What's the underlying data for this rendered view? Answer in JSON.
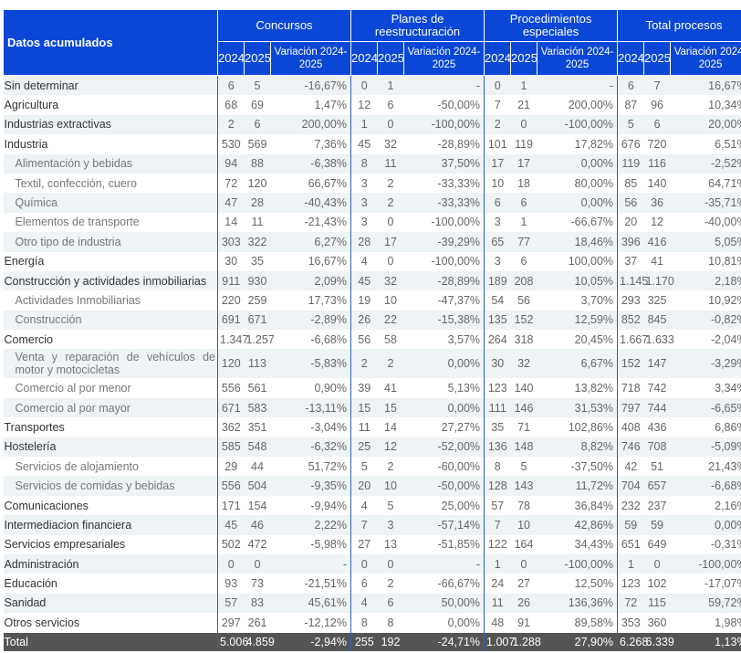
{
  "header": {
    "title": "Datos acumulados",
    "groups": [
      "Concursos",
      "Planes de reestructuración",
      "Procedimientos especiales",
      "Total procesos"
    ],
    "y1": "2024",
    "y2": "2025",
    "var": "Variación 2024-2025"
  },
  "rows": [
    {
      "label": "Sin determinar",
      "sub": false,
      "v": [
        "6",
        "5",
        "-16,67%",
        "0",
        "1",
        "-",
        "0",
        "1",
        "-",
        "6",
        "7",
        "16,67%"
      ]
    },
    {
      "label": "Agricultura",
      "sub": false,
      "v": [
        "68",
        "69",
        "1,47%",
        "12",
        "6",
        "-50,00%",
        "7",
        "21",
        "200,00%",
        "87",
        "96",
        "10,34%"
      ]
    },
    {
      "label": "Industrias extractivas",
      "sub": false,
      "v": [
        "2",
        "6",
        "200,00%",
        "1",
        "0",
        "-100,00%",
        "2",
        "0",
        "-100,00%",
        "5",
        "6",
        "20,00%"
      ]
    },
    {
      "label": "Industria",
      "sub": false,
      "v": [
        "530",
        "569",
        "7,36%",
        "45",
        "32",
        "-28,89%",
        "101",
        "119",
        "17,82%",
        "676",
        "720",
        "6,51%"
      ]
    },
    {
      "label": "Alimentación y bebidas",
      "sub": true,
      "v": [
        "94",
        "88",
        "-6,38%",
        "8",
        "11",
        "37,50%",
        "17",
        "17",
        "0,00%",
        "119",
        "116",
        "-2,52%"
      ]
    },
    {
      "label": "Textil, confección, cuero",
      "sub": true,
      "v": [
        "72",
        "120",
        "66,67%",
        "3",
        "2",
        "-33,33%",
        "10",
        "18",
        "80,00%",
        "85",
        "140",
        "64,71%"
      ]
    },
    {
      "label": "Química",
      "sub": true,
      "v": [
        "47",
        "28",
        "-40,43%",
        "3",
        "2",
        "-33,33%",
        "6",
        "6",
        "0,00%",
        "56",
        "36",
        "-35,71%"
      ]
    },
    {
      "label": "Elementos de transporte",
      "sub": true,
      "v": [
        "14",
        "11",
        "-21,43%",
        "3",
        "0",
        "-100,00%",
        "3",
        "1",
        "-66,67%",
        "20",
        "12",
        "-40,00%"
      ]
    },
    {
      "label": "Otro tipo de industria",
      "sub": true,
      "v": [
        "303",
        "322",
        "6,27%",
        "28",
        "17",
        "-39,29%",
        "65",
        "77",
        "18,46%",
        "396",
        "416",
        "5,05%"
      ]
    },
    {
      "label": "Energía",
      "sub": false,
      "v": [
        "30",
        "35",
        "16,67%",
        "4",
        "0",
        "-100,00%",
        "3",
        "6",
        "100,00%",
        "37",
        "41",
        "10,81%"
      ]
    },
    {
      "label": "Construcción y actividades inmobiliarias",
      "sub": false,
      "v": [
        "911",
        "930",
        "2,09%",
        "45",
        "32",
        "-28,89%",
        "189",
        "208",
        "10,05%",
        "1.145",
        "1.170",
        "2,18%"
      ]
    },
    {
      "label": "Actividades Inmobiliarias",
      "sub": true,
      "v": [
        "220",
        "259",
        "17,73%",
        "19",
        "10",
        "-47,37%",
        "54",
        "56",
        "3,70%",
        "293",
        "325",
        "10,92%"
      ]
    },
    {
      "label": "Construcción",
      "sub": true,
      "v": [
        "691",
        "671",
        "-2,89%",
        "26",
        "22",
        "-15,38%",
        "135",
        "152",
        "12,59%",
        "852",
        "845",
        "-0,82%"
      ]
    },
    {
      "label": "Comercio",
      "sub": false,
      "v": [
        "1.347",
        "1.257",
        "-6,68%",
        "56",
        "58",
        "3,57%",
        "264",
        "318",
        "20,45%",
        "1.667",
        "1.633",
        "-2,04%"
      ]
    },
    {
      "label": "Venta y reparación de vehículos de motor y motocicletas",
      "sub": true,
      "wrap": true,
      "v": [
        "120",
        "113",
        "-5,83%",
        "2",
        "2",
        "0,00%",
        "30",
        "32",
        "6,67%",
        "152",
        "147",
        "-3,29%"
      ]
    },
    {
      "label": "Comercio al por menor",
      "sub": true,
      "v": [
        "556",
        "561",
        "0,90%",
        "39",
        "41",
        "5,13%",
        "123",
        "140",
        "13,82%",
        "718",
        "742",
        "3,34%"
      ]
    },
    {
      "label": "Comercio al por mayor",
      "sub": true,
      "v": [
        "671",
        "583",
        "-13,11%",
        "15",
        "15",
        "0,00%",
        "111",
        "146",
        "31,53%",
        "797",
        "744",
        "-6,65%"
      ]
    },
    {
      "label": "Transportes",
      "sub": false,
      "v": [
        "362",
        "351",
        "-3,04%",
        "11",
        "14",
        "27,27%",
        "35",
        "71",
        "102,86%",
        "408",
        "436",
        "6,86%"
      ]
    },
    {
      "label": "Hostelería",
      "sub": false,
      "v": [
        "585",
        "548",
        "-6,32%",
        "25",
        "12",
        "-52,00%",
        "136",
        "148",
        "8,82%",
        "746",
        "708",
        "-5,09%"
      ]
    },
    {
      "label": "Servicios de alojamiento",
      "sub": true,
      "v": [
        "29",
        "44",
        "51,72%",
        "5",
        "2",
        "-60,00%",
        "8",
        "5",
        "-37,50%",
        "42",
        "51",
        "21,43%"
      ]
    },
    {
      "label": "Servicios de comidas y bebidas",
      "sub": true,
      "v": [
        "556",
        "504",
        "-9,35%",
        "20",
        "10",
        "-50,00%",
        "128",
        "143",
        "11,72%",
        "704",
        "657",
        "-6,68%"
      ]
    },
    {
      "label": "Comunicaciones",
      "sub": false,
      "v": [
        "171",
        "154",
        "-9,94%",
        "4",
        "5",
        "25,00%",
        "57",
        "78",
        "36,84%",
        "232",
        "237",
        "2,16%"
      ]
    },
    {
      "label": "Intermediacion financiera",
      "sub": false,
      "v": [
        "45",
        "46",
        "2,22%",
        "7",
        "3",
        "-57,14%",
        "7",
        "10",
        "42,86%",
        "59",
        "59",
        "0,00%"
      ]
    },
    {
      "label": "Servicios empresariales",
      "sub": false,
      "v": [
        "502",
        "472",
        "-5,98%",
        "27",
        "13",
        "-51,85%",
        "122",
        "164",
        "34,43%",
        "651",
        "649",
        "-0,31%"
      ]
    },
    {
      "label": "Administración",
      "sub": false,
      "v": [
        "0",
        "0",
        "-",
        "0",
        "0",
        "-",
        "1",
        "0",
        "-100,00%",
        "1",
        "0",
        "-100,00%"
      ]
    },
    {
      "label": "Educación",
      "sub": false,
      "v": [
        "93",
        "73",
        "-21,51%",
        "6",
        "2",
        "-66,67%",
        "24",
        "27",
        "12,50%",
        "123",
        "102",
        "-17,07%"
      ]
    },
    {
      "label": "Sanidad",
      "sub": false,
      "v": [
        "57",
        "83",
        "45,61%",
        "4",
        "6",
        "50,00%",
        "11",
        "26",
        "136,36%",
        "72",
        "115",
        "59,72%"
      ]
    },
    {
      "label": "Otros servicios",
      "sub": false,
      "v": [
        "297",
        "261",
        "-12,12%",
        "8",
        "8",
        "0,00%",
        "48",
        "91",
        "89,58%",
        "353",
        "360",
        "1,98%"
      ]
    }
  ],
  "total": {
    "label": "Total",
    "v": [
      "5.006",
      "4.859",
      "-2,94%",
      "255",
      "192",
      "-24,71%",
      "1.007",
      "1.288",
      "27,90%",
      "6.268",
      "6.339",
      "1,13%"
    ]
  }
}
